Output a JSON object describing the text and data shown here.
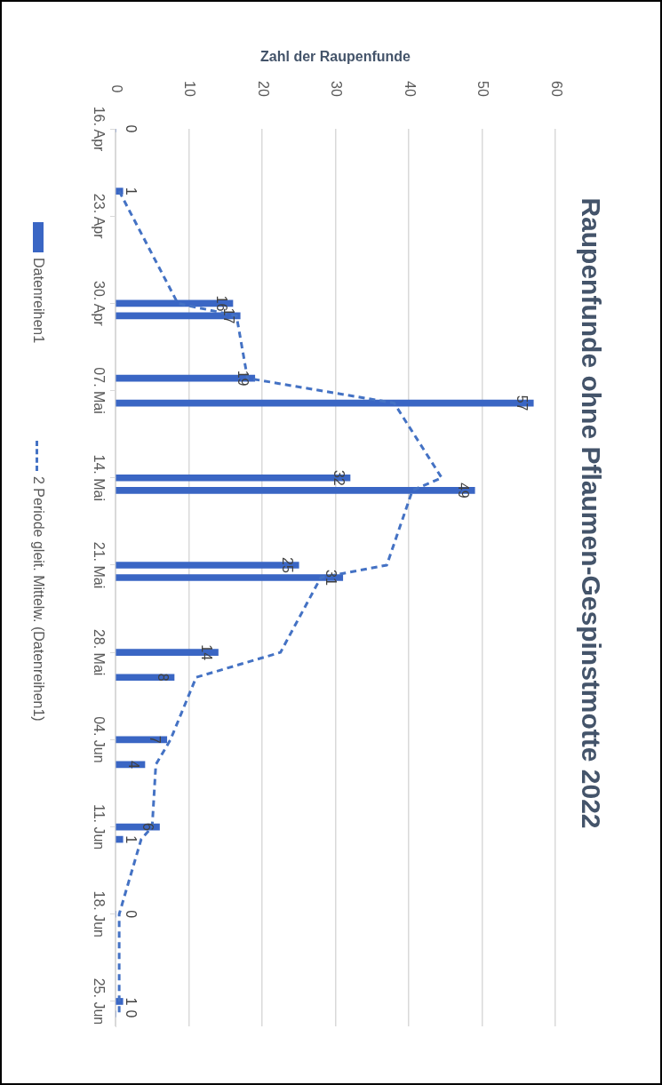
{
  "chart_data": {
    "type": "bar",
    "title": "Raupenfunde ohne Pflaumen-Gespinstmotte 2022",
    "xlabel": "Zahl der Raupenfunde",
    "orientation": "horizontal",
    "x": [
      "2022-04-16",
      "2022-04-21",
      "2022-04-30",
      "2022-05-01",
      "2022-05-06",
      "2022-05-08",
      "2022-05-14",
      "2022-05-15",
      "2022-05-21",
      "2022-05-22",
      "2022-05-28",
      "2022-05-30",
      "2022-06-04",
      "2022-06-06",
      "2022-06-11",
      "2022-06-12",
      "2022-06-18",
      "2022-06-25",
      "2022-06-26"
    ],
    "series": [
      {
        "name": "Datenreihen1",
        "color": "#3a66c4",
        "values": [
          0,
          1,
          16,
          17,
          19,
          57,
          32,
          49,
          25,
          31,
          14,
          8,
          7,
          4,
          6,
          1,
          0,
          1,
          0
        ],
        "value_labels": [
          "0",
          "1",
          "16",
          "17",
          "19",
          "57",
          "32",
          "49",
          "25",
          "31",
          "14",
          "8",
          "7",
          "4",
          "6",
          "1",
          "0",
          "1",
          "0"
        ]
      },
      {
        "name": "2 Periode gleit. Mittelw. (Datenreihen1)",
        "type": "line",
        "line_style": "dashed",
        "color": "#4472c4",
        "x": [
          "2022-04-21",
          "2022-04-30",
          "2022-05-01",
          "2022-05-06",
          "2022-05-08",
          "2022-05-14",
          "2022-05-15",
          "2022-05-21",
          "2022-05-22",
          "2022-05-28",
          "2022-05-30",
          "2022-06-04",
          "2022-06-06",
          "2022-06-11",
          "2022-06-12",
          "2022-06-18",
          "2022-06-25",
          "2022-06-26"
        ],
        "values": [
          0.5,
          8.5,
          16.5,
          18,
          38,
          44.5,
          40.5,
          37,
          28,
          22.5,
          11,
          7.5,
          5.5,
          5,
          3.5,
          0.5,
          0.5,
          0.5
        ]
      }
    ],
    "xlim": [
      0,
      60
    ],
    "xticks": [
      0,
      10,
      20,
      30,
      40,
      50,
      60
    ],
    "ylim": [
      "2022-06-27",
      "2022-04-16"
    ],
    "yticks": [
      {
        "value": "2022-04-16",
        "label": "16. Apr"
      },
      {
        "value": "2022-04-23",
        "label": "23. Apr"
      },
      {
        "value": "2022-04-30",
        "label": "30. Apr"
      },
      {
        "value": "2022-05-07",
        "label": "07. Mai"
      },
      {
        "value": "2022-05-14",
        "label": "14. Mai"
      },
      {
        "value": "2022-05-21",
        "label": "21. Mai"
      },
      {
        "value": "2022-05-28",
        "label": "28. Mai"
      },
      {
        "value": "2022-06-04",
        "label": "04. Jun"
      },
      {
        "value": "2022-06-11",
        "label": "11. Jun"
      },
      {
        "value": "2022-06-18",
        "label": "18. Jun"
      },
      {
        "value": "2022-06-25",
        "label": "25. Jun"
      }
    ],
    "grid": "x",
    "legend": "left",
    "marker": "none"
  }
}
